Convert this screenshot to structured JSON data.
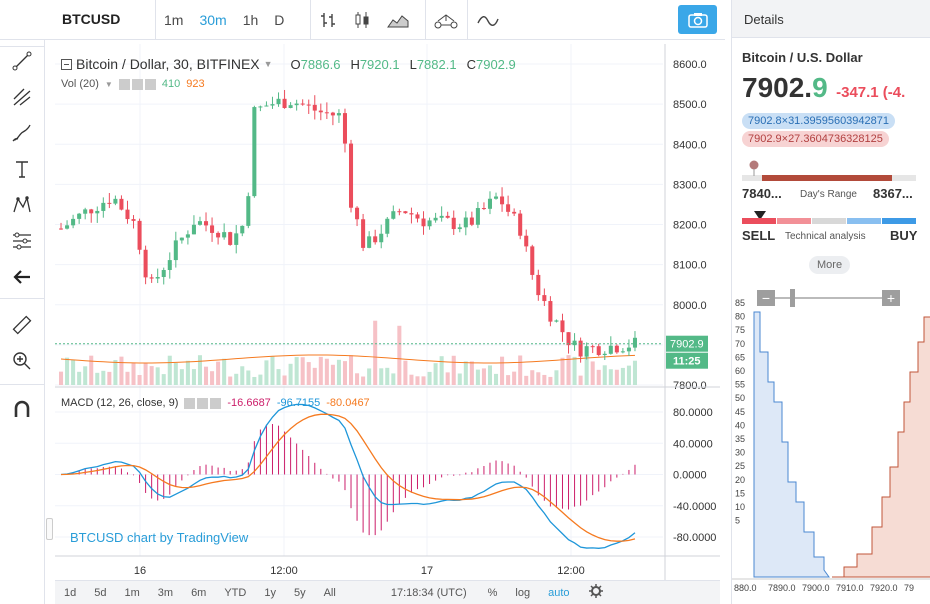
{
  "toolbar": {
    "symbol": "BTCUSD",
    "intervals": [
      "1m",
      "30m",
      "1h",
      "D"
    ],
    "active_interval": "30m"
  },
  "legend": {
    "title": "Bitcoin / Dollar, 30, BITFINEX",
    "o_label": "O",
    "o": "7886.6",
    "h_label": "H",
    "h": "7920.1",
    "l_label": "L",
    "l": "7882.1",
    "c_label": "C",
    "c": "7902.9",
    "vol_label": "Vol (20)",
    "vol_a": "410",
    "vol_b": "923",
    "macd_label": "MACD (12, 26, close, 9)",
    "macd_a": "-16.6687",
    "macd_b": "-96.7155",
    "macd_c": "-80.0467",
    "watermark": "BTCUSD chart by TradingView"
  },
  "price_axis": {
    "ticks": [
      "8600.0",
      "8500.0",
      "8400.0",
      "8300.0",
      "8200.0",
      "8100.0",
      "8000.0",
      "7900.0",
      "7800.0"
    ],
    "last_price": "7902.9",
    "countdown": "11:25",
    "macd_ticks": [
      "80.0000",
      "40.0000",
      "0.0000",
      "-40.0000",
      "-80.0000"
    ]
  },
  "time_axis": {
    "labels": [
      "16",
      "12:00",
      "17",
      "12:00"
    ]
  },
  "bottom_bar": {
    "ranges": [
      "1d",
      "5d",
      "1m",
      "3m",
      "6m",
      "YTD",
      "1y",
      "5y",
      "All"
    ],
    "clock": "17:18:34 (UTC)",
    "pct": "%",
    "log": "log",
    "auto": "auto"
  },
  "details": {
    "header": "Details",
    "name": "Bitcoin / U.S. Dollar",
    "price_main": "7902.",
    "price_last_digit": "9",
    "change": "-347.1 (-4.",
    "bid": "7902.8×31.39595603942871",
    "ask": "7902.9×27.3604736328125",
    "range_low": "7840...",
    "range_label": "Day's Range",
    "range_high": "8367...",
    "range_fraction": 0.07,
    "ta_sell": "SELL",
    "ta_label": "Technical analysis",
    "ta_buy": "BUY",
    "more": "More",
    "depth_y_ticks": [
      "85",
      "80",
      "75",
      "70",
      "65",
      "60",
      "55",
      "50",
      "45",
      "40",
      "35",
      "30",
      "25",
      "20",
      "15",
      "10",
      "5"
    ],
    "depth_x_ticks": [
      "880.0",
      "7890.0",
      "7900.0",
      "7910.0",
      "7920.0",
      "79"
    ]
  },
  "colors": {
    "up": "#53b987",
    "down": "#eb4d5c",
    "accent": "#299dd8",
    "macd": "#1e96d9",
    "signal": "#f57a20",
    "hist": "#cc1e6a"
  }
}
